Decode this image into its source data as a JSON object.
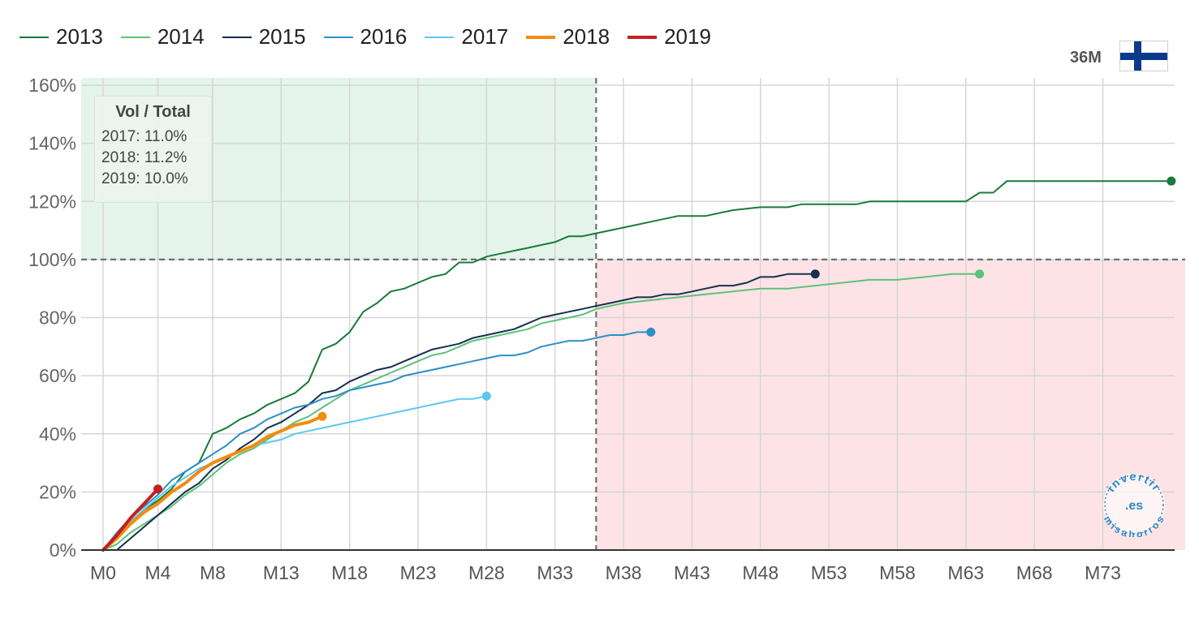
{
  "badge": {
    "label": "36M"
  },
  "infobox": {
    "title": "Vol / Total",
    "lines": [
      "2017: 11.0%",
      "2018: 11.2%",
      "2019: 10.0%"
    ]
  },
  "watermark": {
    "top_text": "invertir",
    "middle_text": ".es",
    "bottom_text": "misahorros",
    "color": "#2a8bc4"
  },
  "flag": {
    "icon": "finland-flag-icon",
    "cross_color": "#0b3a8a"
  },
  "chart_data": {
    "type": "line",
    "x_tick_labels": [
      "M0",
      "M4",
      "M8",
      "M13",
      "M18",
      "M23",
      "M28",
      "M33",
      "M38",
      "M43",
      "M48",
      "M53",
      "M58",
      "M63",
      "M68",
      "M73"
    ],
    "x_ticks": [
      0,
      4,
      8,
      13,
      18,
      23,
      28,
      33,
      38,
      43,
      48,
      53,
      58,
      63,
      68,
      73
    ],
    "xlim": [
      0,
      79
    ],
    "ylim": [
      0,
      160
    ],
    "y_ticks": [
      0,
      20,
      40,
      60,
      80,
      100,
      120,
      140,
      160
    ],
    "y_tick_labels": [
      "0%",
      "20%",
      "40%",
      "60%",
      "80%",
      "100%",
      "120%",
      "140%",
      "160%"
    ],
    "grid": true,
    "legend_position": "top-left",
    "reference_lines": {
      "x": 36,
      "y": 100
    },
    "regions": [
      {
        "x_range": [
          0,
          36
        ],
        "y_range": [
          100,
          160
        ],
        "color": "#e4f4ea"
      },
      {
        "x_range": [
          36,
          79
        ],
        "y_range": [
          0,
          100
        ],
        "color": "#fde3e6"
      }
    ],
    "series": [
      {
        "name": "2013",
        "color": "#1a7a3a",
        "width": 2,
        "x": [
          0,
          1,
          2,
          3,
          4,
          5,
          6,
          7,
          8,
          9,
          10,
          11,
          12,
          13,
          14,
          15,
          16,
          17,
          18,
          19,
          20,
          21,
          22,
          23,
          24,
          25,
          26,
          27,
          28,
          29,
          30,
          31,
          32,
          33,
          34,
          35,
          36,
          38,
          40,
          42,
          44,
          46,
          48,
          50,
          51,
          53,
          55,
          56,
          58,
          60,
          62,
          63,
          64,
          65,
          66,
          70,
          75,
          78
        ],
        "y": [
          0,
          4,
          9,
          14,
          17,
          21,
          27,
          30,
          40,
          42,
          45,
          47,
          50,
          52,
          54,
          58,
          69,
          71,
          75,
          82,
          85,
          89,
          90,
          92,
          94,
          95,
          99,
          99,
          101,
          102,
          103,
          104,
          105,
          106,
          108,
          108,
          109,
          111,
          113,
          115,
          115,
          117,
          118,
          118,
          119,
          119,
          119,
          120,
          120,
          120,
          120,
          120,
          123,
          123,
          127,
          127,
          127,
          127
        ]
      },
      {
        "name": "2014",
        "color": "#5cc27a",
        "width": 2,
        "x": [
          0,
          1,
          2,
          3,
          4,
          5,
          6,
          7,
          8,
          9,
          10,
          11,
          12,
          13,
          14,
          15,
          16,
          17,
          18,
          19,
          20,
          21,
          22,
          23,
          24,
          25,
          26,
          27,
          28,
          29,
          30,
          31,
          32,
          33,
          34,
          35,
          36,
          38,
          40,
          42,
          44,
          46,
          48,
          50,
          52,
          54,
          56,
          58,
          60,
          62,
          64
        ],
        "y": [
          0,
          2,
          6,
          9,
          12,
          15,
          19,
          22,
          26,
          30,
          33,
          35,
          38,
          41,
          44,
          46,
          49,
          52,
          55,
          57,
          59,
          61,
          63,
          65,
          67,
          68,
          70,
          72,
          73,
          74,
          75,
          76,
          78,
          79,
          80,
          81,
          83,
          85,
          86,
          87,
          88,
          89,
          90,
          90,
          91,
          92,
          93,
          93,
          94,
          95,
          95
        ]
      },
      {
        "name": "2015",
        "color": "#16304d",
        "width": 2,
        "x": [
          0,
          1,
          2,
          3,
          4,
          5,
          6,
          7,
          8,
          9,
          10,
          11,
          12,
          13,
          14,
          15,
          16,
          17,
          18,
          19,
          20,
          21,
          22,
          23,
          24,
          25,
          26,
          27,
          28,
          29,
          30,
          31,
          32,
          33,
          34,
          35,
          36,
          37,
          38,
          39,
          40,
          41,
          42,
          43,
          44,
          45,
          46,
          47,
          48,
          49,
          50,
          51,
          52
        ],
        "y": [
          0,
          0,
          4,
          8,
          12,
          16,
          20,
          23,
          28,
          31,
          35,
          38,
          42,
          44,
          47,
          50,
          54,
          55,
          58,
          60,
          62,
          63,
          65,
          67,
          69,
          70,
          71,
          73,
          74,
          75,
          76,
          78,
          80,
          81,
          82,
          83,
          84,
          85,
          86,
          87,
          87,
          88,
          88,
          89,
          90,
          91,
          91,
          92,
          94,
          94,
          95,
          95,
          95
        ]
      },
      {
        "name": "2016",
        "color": "#2c8fc7",
        "width": 2,
        "x": [
          0,
          1,
          2,
          3,
          4,
          5,
          6,
          7,
          8,
          9,
          10,
          11,
          12,
          13,
          14,
          15,
          16,
          17,
          18,
          19,
          20,
          21,
          22,
          23,
          24,
          25,
          26,
          27,
          28,
          29,
          30,
          31,
          32,
          33,
          34,
          35,
          36,
          37,
          38,
          39,
          40
        ],
        "y": [
          0,
          6,
          11,
          15,
          19,
          24,
          27,
          30,
          33,
          36,
          40,
          42,
          45,
          47,
          49,
          50,
          52,
          53,
          55,
          56,
          57,
          58,
          60,
          61,
          62,
          63,
          64,
          65,
          66,
          67,
          67,
          68,
          70,
          71,
          72,
          72,
          73,
          74,
          74,
          75,
          75
        ]
      },
      {
        "name": "2017",
        "color": "#5cc8ef",
        "width": 2,
        "x": [
          0,
          1,
          2,
          3,
          4,
          5,
          6,
          7,
          8,
          9,
          10,
          11,
          12,
          13,
          14,
          15,
          16,
          17,
          18,
          19,
          20,
          21,
          22,
          23,
          24,
          25,
          26,
          27,
          28
        ],
        "y": [
          0,
          4,
          10,
          14,
          18,
          22,
          25,
          28,
          30,
          32,
          34,
          36,
          37,
          38,
          40,
          41,
          42,
          43,
          44,
          45,
          46,
          47,
          48,
          49,
          50,
          51,
          52,
          52,
          53
        ]
      },
      {
        "name": "2018",
        "color": "#f28c0f",
        "width": 4,
        "x": [
          0,
          1,
          2,
          3,
          4,
          5,
          6,
          7,
          8,
          9,
          10,
          11,
          12,
          13,
          14,
          15,
          16
        ],
        "y": [
          0,
          4,
          9,
          13,
          16,
          20,
          23,
          27,
          30,
          32,
          34,
          36,
          39,
          41,
          43,
          44,
          46
        ]
      },
      {
        "name": "2019",
        "color": "#c42020",
        "width": 4,
        "x": [
          0,
          1,
          2,
          3,
          4
        ],
        "y": [
          0,
          5,
          11,
          16,
          21
        ]
      }
    ]
  }
}
